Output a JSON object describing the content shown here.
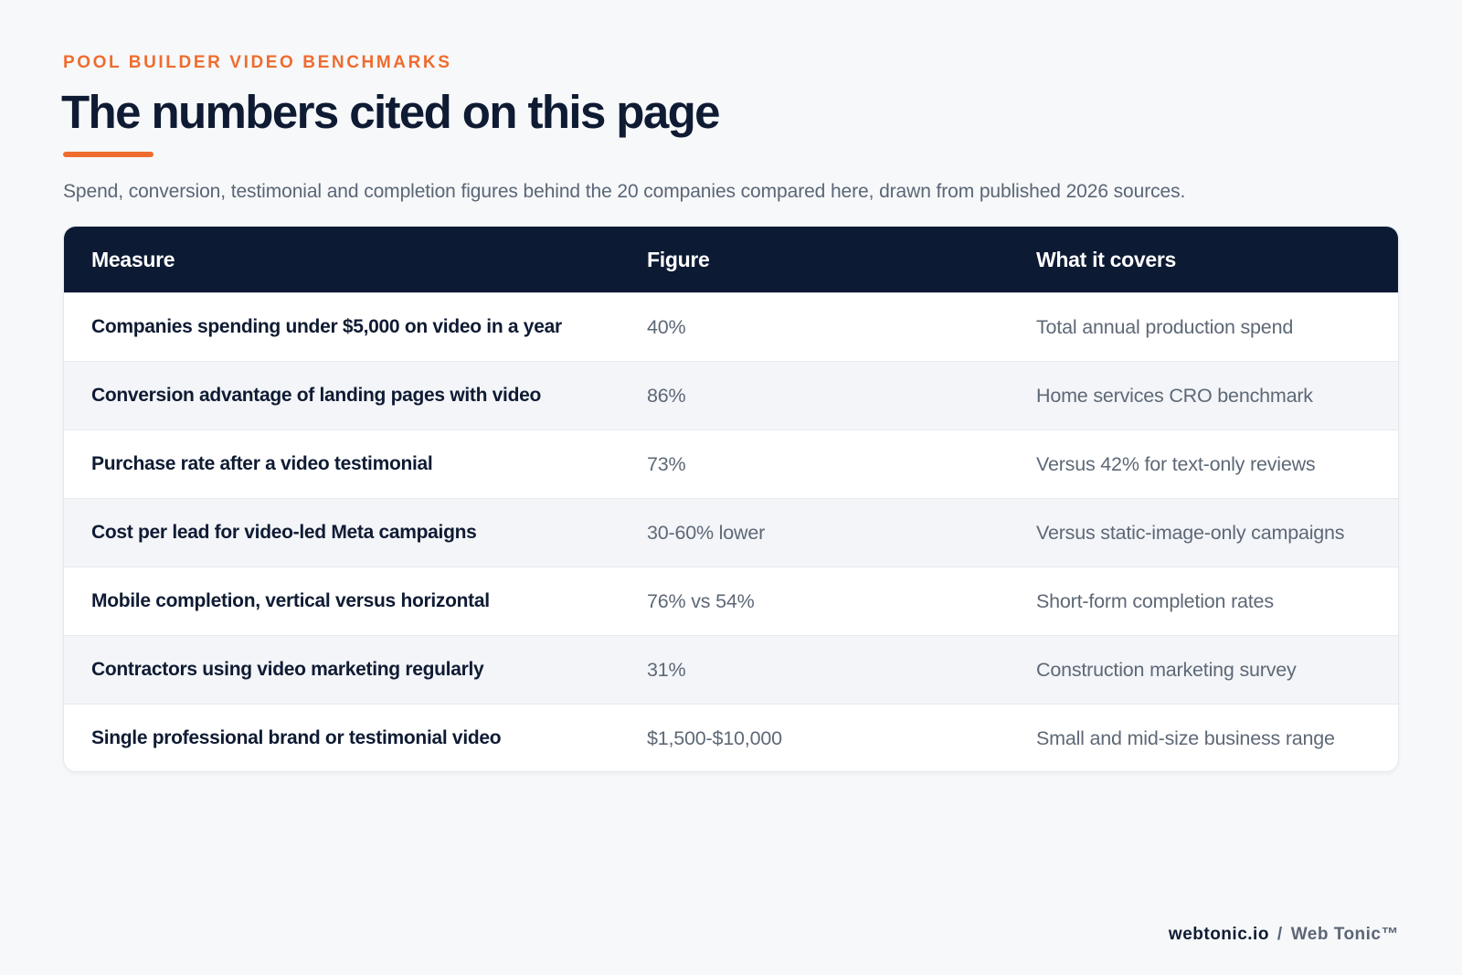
{
  "header": {
    "eyebrow": "POOL BUILDER VIDEO BENCHMARKS",
    "title": "The numbers cited on this page",
    "subtitle": "Spend, conversion, testimonial and completion figures behind the 20 companies compared here, drawn from published 2026 sources."
  },
  "table": {
    "columns": [
      "Measure",
      "Figure",
      "What it covers"
    ],
    "rows": [
      {
        "measure": "Companies spending under $5,000 on video in a year",
        "figure": "40%",
        "covers": "Total annual production spend"
      },
      {
        "measure": "Conversion advantage of landing pages with video",
        "figure": "86%",
        "covers": "Home services CRO benchmark"
      },
      {
        "measure": "Purchase rate after a video testimonial",
        "figure": "73%",
        "covers": "Versus 42% for text-only reviews"
      },
      {
        "measure": "Cost per lead for video-led Meta campaigns",
        "figure": "30-60% lower",
        "covers": "Versus static-image-only campaigns"
      },
      {
        "measure": "Mobile completion, vertical versus horizontal",
        "figure": "76% vs 54%",
        "covers": "Short-form completion rates"
      },
      {
        "measure": "Contractors using video marketing regularly",
        "figure": "31%",
        "covers": "Construction marketing survey"
      },
      {
        "measure": "Single professional brand or testimonial video",
        "figure": "$1,500-$10,000",
        "covers": "Small and mid-size business range"
      }
    ]
  },
  "footer": {
    "domain": "webtonic.io",
    "separator": "/",
    "brand": "Web Tonic™"
  },
  "colors": {
    "accent": "#ef6c2f",
    "navy": "#0c1a33",
    "background": "#f6f8fa"
  }
}
